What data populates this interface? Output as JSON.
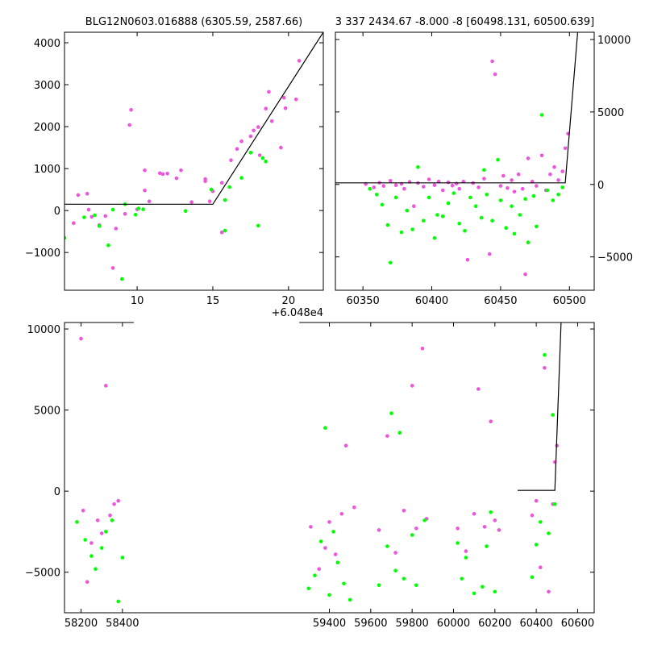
{
  "page_background": "#ffffff",
  "colors": {
    "series_a": "#ee55dd",
    "series_b": "#00ff00",
    "model": "#000000",
    "axes": "#000000"
  },
  "chart_data": [
    {
      "type": "scatter",
      "title": "BLG12N0603.016888 (6305.59, 2587.66)",
      "xlabel": "",
      "ylabel": "",
      "xlim": [
        5.2,
        22.3
      ],
      "ylim": [
        -1900,
        4250
      ],
      "xticks": [
        10,
        15,
        20
      ],
      "xtick_labels": [
        "10",
        "15",
        "20"
      ],
      "yticks": [
        -1000,
        0,
        1000,
        2000,
        3000,
        4000
      ],
      "ytick_labels": [
        "−1000",
        "0",
        "1000",
        "2000",
        "3000",
        "4000"
      ],
      "yaxis_side": "left",
      "x_offset_label": "+6.048e4",
      "grid": false,
      "series": [
        {
          "color": "#ee55dd",
          "points": [
            [
              5.8,
              -300
            ],
            [
              6.1,
              370
            ],
            [
              6.7,
              400
            ],
            [
              6.8,
              20
            ],
            [
              7.0,
              -150
            ],
            [
              7.5,
              -350
            ],
            [
              7.9,
              -130
            ],
            [
              8.4,
              -1370
            ],
            [
              8.6,
              -430
            ],
            [
              9.2,
              -80
            ],
            [
              9.5,
              2040
            ],
            [
              9.6,
              2400
            ],
            [
              10.0,
              30
            ],
            [
              10.5,
              960
            ],
            [
              10.5,
              480
            ],
            [
              10.8,
              220
            ],
            [
              11.5,
              890
            ],
            [
              11.7,
              870
            ],
            [
              12.0,
              880
            ],
            [
              12.6,
              770
            ],
            [
              12.9,
              960
            ],
            [
              13.6,
              200
            ],
            [
              14.5,
              700
            ],
            [
              14.5,
              750
            ],
            [
              14.8,
              220
            ],
            [
              15.0,
              460
            ],
            [
              15.6,
              660
            ],
            [
              15.6,
              -520
            ],
            [
              16.2,
              1200
            ],
            [
              16.6,
              1470
            ],
            [
              16.9,
              1650
            ],
            [
              17.5,
              1770
            ],
            [
              17.7,
              1910
            ],
            [
              18.0,
              1990
            ],
            [
              18.1,
              1320
            ],
            [
              18.5,
              2430
            ],
            [
              18.7,
              2830
            ],
            [
              18.9,
              2130
            ],
            [
              19.5,
              1500
            ],
            [
              19.7,
              2690
            ],
            [
              19.8,
              2440
            ],
            [
              20.5,
              2650
            ],
            [
              20.7,
              3570
            ]
          ]
        },
        {
          "color": "#00ff00",
          "points": [
            [
              5.2,
              -650
            ],
            [
              6.5,
              -160
            ],
            [
              7.2,
              -110
            ],
            [
              7.5,
              -370
            ],
            [
              8.1,
              -830
            ],
            [
              8.4,
              20
            ],
            [
              9.0,
              -1630
            ],
            [
              9.2,
              150
            ],
            [
              9.9,
              -100
            ],
            [
              10.1,
              50
            ],
            [
              10.4,
              30
            ],
            [
              13.2,
              -10
            ],
            [
              14.9,
              500
            ],
            [
              15.8,
              -480
            ],
            [
              15.8,
              250
            ],
            [
              16.1,
              560
            ],
            [
              16.9,
              780
            ],
            [
              17.5,
              1380
            ],
            [
              18.0,
              -360
            ],
            [
              18.3,
              1250
            ],
            [
              18.5,
              1170
            ]
          ]
        }
      ],
      "model_line": [
        [
          5.2,
          150
        ],
        [
          15.0,
          150
        ],
        [
          22.3,
          4250
        ]
      ]
    },
    {
      "type": "scatter",
      "title": "3 337 2434.67 -8.000 -8 [60498.131, 60500.639]",
      "xlabel": "",
      "ylabel": "",
      "xlim": [
        60330,
        60518
      ],
      "ylim": [
        -7300,
        10500
      ],
      "xticks": [
        60350,
        60400,
        60450,
        60500
      ],
      "xtick_labels": [
        "60350",
        "60400",
        "60450",
        "60500"
      ],
      "yticks": [
        -5000,
        0,
        5000,
        10000
      ],
      "ytick_labels": [
        "−5000",
        "0",
        "5000",
        "10000"
      ],
      "yaxis_side": "right",
      "grid": false,
      "series": [
        {
          "color": "#ee55dd",
          "points": [
            [
              60352,
              30
            ],
            [
              60358,
              -200
            ],
            [
              60362,
              120
            ],
            [
              60365,
              -100
            ],
            [
              60370,
              250
            ],
            [
              60374,
              -50
            ],
            [
              60378,
              40
            ],
            [
              60380,
              -300
            ],
            [
              60384,
              180
            ],
            [
              60387,
              -1500
            ],
            [
              60390,
              100
            ],
            [
              60394,
              -150
            ],
            [
              60398,
              350
            ],
            [
              60402,
              -50
            ],
            [
              60405,
              200
            ],
            [
              60408,
              -400
            ],
            [
              60412,
              150
            ],
            [
              60415,
              -80
            ],
            [
              60418,
              60
            ],
            [
              60420,
              -300
            ],
            [
              60423,
              200
            ],
            [
              60426,
              -5200
            ],
            [
              60430,
              100
            ],
            [
              60434,
              -200
            ],
            [
              60438,
              400
            ],
            [
              60442,
              -4800
            ],
            [
              60444,
              8500
            ],
            [
              60446,
              7600
            ],
            [
              60450,
              -100
            ],
            [
              60452,
              600
            ],
            [
              60455,
              -250
            ],
            [
              60458,
              300
            ],
            [
              60460,
              -500
            ],
            [
              60463,
              700
            ],
            [
              60466,
              -300
            ],
            [
              60468,
              -6200
            ],
            [
              60470,
              1800
            ],
            [
              60473,
              200
            ],
            [
              60476,
              -100
            ],
            [
              60480,
              2000
            ],
            [
              60483,
              -400
            ],
            [
              60486,
              700
            ],
            [
              60489,
              1200
            ],
            [
              60492,
              300
            ],
            [
              60495,
              900
            ],
            [
              60497,
              2500
            ],
            [
              60499,
              3500
            ]
          ]
        },
        {
          "color": "#00ff00",
          "points": [
            [
              60355,
              -300
            ],
            [
              60360,
              -700
            ],
            [
              60364,
              -1400
            ],
            [
              60368,
              -2800
            ],
            [
              60370,
              -5400
            ],
            [
              60374,
              -900
            ],
            [
              60378,
              -3300
            ],
            [
              60382,
              -1800
            ],
            [
              60386,
              -3100
            ],
            [
              60390,
              1200
            ],
            [
              60394,
              -2500
            ],
            [
              60398,
              -900
            ],
            [
              60402,
              -3700
            ],
            [
              60404,
              -2100
            ],
            [
              60408,
              -2200
            ],
            [
              60412,
              -1300
            ],
            [
              60416,
              -600
            ],
            [
              60420,
              -2700
            ],
            [
              60424,
              -3200
            ],
            [
              60428,
              -900
            ],
            [
              60432,
              -1500
            ],
            [
              60436,
              -2300
            ],
            [
              60438,
              1000
            ],
            [
              60440,
              -700
            ],
            [
              60444,
              -2500
            ],
            [
              60448,
              1700
            ],
            [
              60450,
              -1100
            ],
            [
              60454,
              -3000
            ],
            [
              60458,
              -1500
            ],
            [
              60460,
              -3400
            ],
            [
              60464,
              -2100
            ],
            [
              60468,
              -1000
            ],
            [
              60470,
              -4000
            ],
            [
              60474,
              -800
            ],
            [
              60476,
              -2900
            ],
            [
              60480,
              4800
            ],
            [
              60484,
              -400
            ],
            [
              60488,
              -1100
            ],
            [
              60492,
              -700
            ],
            [
              60495,
              -200
            ]
          ]
        }
      ],
      "model_line": [
        [
          60330,
          110
        ],
        [
          60497,
          110
        ],
        [
          60506,
          10500
        ]
      ]
    },
    {
      "type": "scatter",
      "title": "",
      "xlabel": "",
      "ylabel": "",
      "xlim": [
        58120,
        60680
      ],
      "ylim": [
        -7500,
        10400
      ],
      "xticks": [
        58200,
        58400,
        59400,
        59600,
        59800,
        60000,
        60200,
        60400,
        60600
      ],
      "xtick_labels": [
        "58200",
        "58400",
        "59400",
        "59600",
        "59800",
        "60000",
        "60200",
        "60400",
        "60600"
      ],
      "yticks": [
        -5000,
        0,
        5000,
        10000
      ],
      "ytick_labels": [
        "−5000",
        "0",
        "5000",
        "10000"
      ],
      "yaxis_side": "left",
      "x_break": [
        58455,
        59255
      ],
      "grid": false,
      "series": [
        {
          "color": "#ee55dd",
          "points": [
            [
              58200,
              9400
            ],
            [
              58210,
              -1200
            ],
            [
              58230,
              -5600
            ],
            [
              58250,
              -3200
            ],
            [
              58280,
              -1800
            ],
            [
              58300,
              -2600
            ],
            [
              58320,
              6500
            ],
            [
              58340,
              -1500
            ],
            [
              58360,
              -800
            ],
            [
              58380,
              -600
            ],
            [
              59310,
              -2200
            ],
            [
              59350,
              -4800
            ],
            [
              59380,
              -3500
            ],
            [
              59400,
              -1900
            ],
            [
              59430,
              -3900
            ],
            [
              59460,
              -1400
            ],
            [
              59480,
              2800
            ],
            [
              59520,
              -1000
            ],
            [
              59640,
              -2400
            ],
            [
              59680,
              3400
            ],
            [
              59720,
              -3800
            ],
            [
              59760,
              -1200
            ],
            [
              59800,
              6500
            ],
            [
              59820,
              -2300
            ],
            [
              59850,
              8800
            ],
            [
              59870,
              -1700
            ],
            [
              60020,
              -2300
            ],
            [
              60060,
              -3700
            ],
            [
              60100,
              -1400
            ],
            [
              60120,
              6300
            ],
            [
              60150,
              -2200
            ],
            [
              60180,
              4300
            ],
            [
              60200,
              -1800
            ],
            [
              60220,
              -2400
            ],
            [
              60380,
              -1500
            ],
            [
              60400,
              -600
            ],
            [
              60420,
              -4700
            ],
            [
              60440,
              7600
            ],
            [
              60460,
              -6200
            ],
            [
              60480,
              -800
            ],
            [
              60490,
              1800
            ],
            [
              60500,
              2800
            ]
          ]
        },
        {
          "color": "#00ff00",
          "points": [
            [
              58180,
              -1900
            ],
            [
              58220,
              -3000
            ],
            [
              58250,
              -4000
            ],
            [
              58270,
              -4800
            ],
            [
              58300,
              -3500
            ],
            [
              58320,
              -2500
            ],
            [
              58350,
              -1800
            ],
            [
              58380,
              -6800
            ],
            [
              58400,
              -4100
            ],
            [
              59300,
              -6000
            ],
            [
              59330,
              -5200
            ],
            [
              59360,
              -3100
            ],
            [
              59380,
              3900
            ],
            [
              59400,
              -6400
            ],
            [
              59420,
              -2500
            ],
            [
              59440,
              -4400
            ],
            [
              59470,
              -5700
            ],
            [
              59500,
              -6700
            ],
            [
              59640,
              -5800
            ],
            [
              59680,
              -3400
            ],
            [
              59700,
              4800
            ],
            [
              59720,
              -4900
            ],
            [
              59740,
              3600
            ],
            [
              59760,
              -5400
            ],
            [
              59800,
              -2700
            ],
            [
              59820,
              -5800
            ],
            [
              59860,
              -1800
            ],
            [
              60020,
              -3200
            ],
            [
              60040,
              -5400
            ],
            [
              60060,
              -4100
            ],
            [
              60100,
              -6300
            ],
            [
              60140,
              -5900
            ],
            [
              60160,
              -3400
            ],
            [
              60180,
              -1300
            ],
            [
              60200,
              -6200
            ],
            [
              60380,
              -5300
            ],
            [
              60400,
              -3300
            ],
            [
              60420,
              -1900
            ],
            [
              60440,
              8400
            ],
            [
              60460,
              -2600
            ],
            [
              60480,
              4700
            ],
            [
              60490,
              -800
            ]
          ]
        }
      ],
      "model_line": [
        [
          60310,
          50
        ],
        [
          60490,
          50
        ],
        [
          60520,
          10400
        ]
      ]
    }
  ]
}
